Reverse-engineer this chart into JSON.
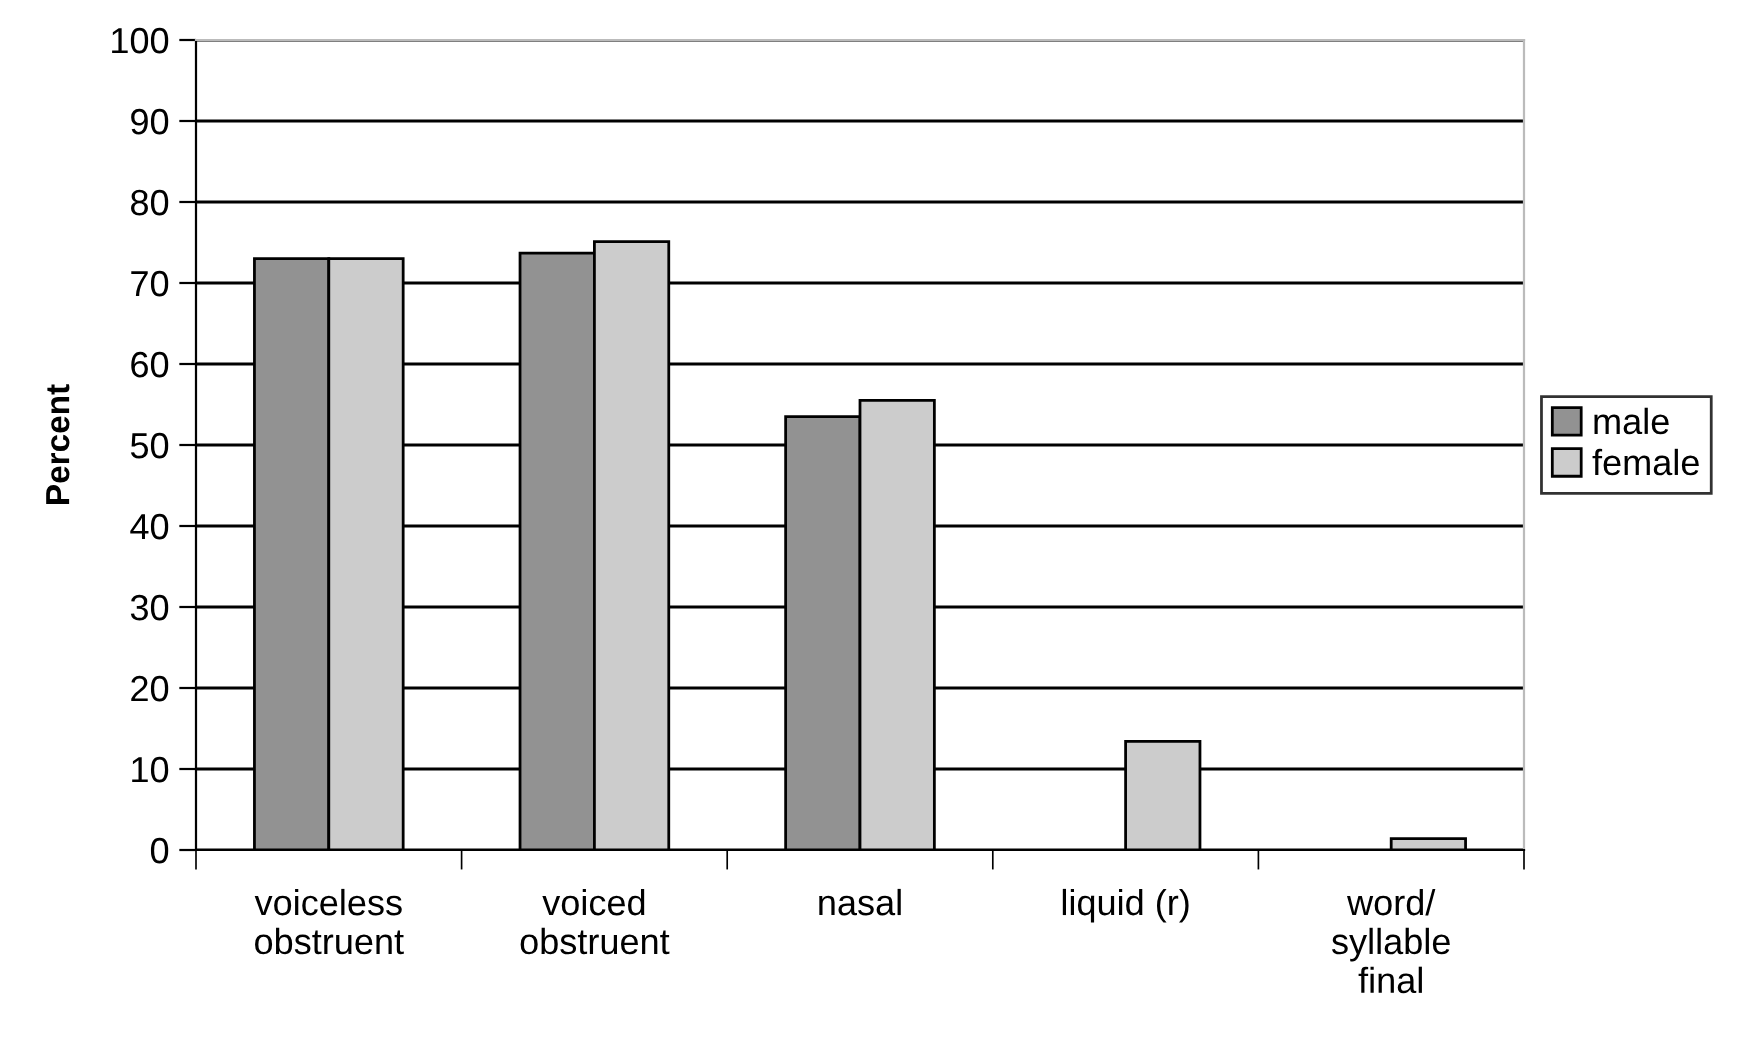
{
  "chart_data": {
    "type": "bar",
    "ylabel": "Percent",
    "categories": [
      "voiceless\nobstruent",
      "voiced\nobstruent",
      "nasal",
      "liquid (r)",
      "word/\nsyllable\nfinal"
    ],
    "series": [
      {
        "name": "male",
        "color": "#929292",
        "values": [
          73,
          73.7,
          53.5,
          null,
          null
        ]
      },
      {
        "name": "female",
        "color": "#cccccc",
        "values": [
          73,
          75.1,
          55.5,
          13.4,
          1.4
        ]
      }
    ],
    "ylim": [
      0,
      100
    ],
    "yticks": [
      0,
      10,
      20,
      30,
      40,
      50,
      60,
      70,
      80,
      90,
      100
    ],
    "grid": "y",
    "legend": "right"
  }
}
